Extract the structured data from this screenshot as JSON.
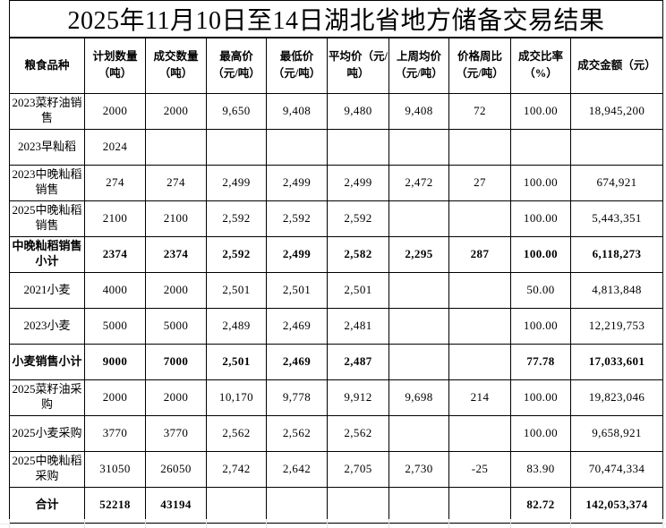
{
  "title": "2025年11月10日至14日湖北省地方储备交易结果",
  "colors": {
    "border": "#000000",
    "background": "#ffffff",
    "text": "#000000"
  },
  "table": {
    "columns": [
      "粮食品种",
      "计划数量（吨）",
      "成交数量（吨）",
      "最高价（元/吨）",
      "最低价（元/吨）",
      "平均价（元/吨）",
      "上周均价（元/吨）",
      "价格周比（元/吨）",
      "成交比率（%）",
      "成交金额（元）"
    ],
    "rows": [
      {
        "label": "2023菜籽油销售",
        "bold": false,
        "cells": [
          "2000",
          "2000",
          "9,650",
          "9,408",
          "9,480",
          "9,408",
          "72",
          "100.00",
          "18,945,200"
        ]
      },
      {
        "label": "2023早籼稻",
        "bold": false,
        "cells": [
          "2024",
          "",
          "",
          "",
          "",
          "",
          "",
          "",
          ""
        ]
      },
      {
        "label": "2023中晚籼稻销售",
        "bold": false,
        "cells": [
          "274",
          "274",
          "2,499",
          "2,499",
          "2,499",
          "2,472",
          "27",
          "100.00",
          "674,921"
        ]
      },
      {
        "label": "2025中晚籼稻销售",
        "bold": false,
        "cells": [
          "2100",
          "2100",
          "2,592",
          "2,592",
          "2,592",
          "",
          "",
          "100.00",
          "5,443,351"
        ]
      },
      {
        "label": "中晚籼稻销售小计",
        "bold": true,
        "cells": [
          "2374",
          "2374",
          "2,592",
          "2,499",
          "2,582",
          "2,295",
          "287",
          "100.00",
          "6,118,273"
        ]
      },
      {
        "label": "2021小麦",
        "bold": false,
        "cells": [
          "4000",
          "2000",
          "2,501",
          "2,501",
          "2,501",
          "",
          "",
          "50.00",
          "4,813,848"
        ]
      },
      {
        "label": "2023小麦",
        "bold": false,
        "cells": [
          "5000",
          "5000",
          "2,489",
          "2,469",
          "2,481",
          "",
          "",
          "100.00",
          "12,219,753"
        ]
      },
      {
        "label": "小麦销售小计",
        "bold": true,
        "cells": [
          "9000",
          "7000",
          "2,501",
          "2,469",
          "2,487",
          "",
          "",
          "77.78",
          "17,033,601"
        ]
      },
      {
        "label": "2025菜籽油采购",
        "bold": false,
        "cells": [
          "2000",
          "2000",
          "10,170",
          "9,778",
          "9,912",
          "9,698",
          "214",
          "100.00",
          "19,823,046"
        ]
      },
      {
        "label": "2025小麦采购",
        "bold": false,
        "cells": [
          "3770",
          "3770",
          "2,562",
          "2,562",
          "2,562",
          "",
          "",
          "100.00",
          "9,658,921"
        ]
      },
      {
        "label": "2025中晚籼稻采购",
        "bold": false,
        "cells": [
          "31050",
          "26050",
          "2,742",
          "2,642",
          "2,705",
          "2,730",
          "-25",
          "83.90",
          "70,474,334"
        ]
      },
      {
        "label": "合计",
        "bold": true,
        "cells": [
          "52218",
          "43194",
          "",
          "",
          "",
          "",
          "",
          "82.72",
          "142,053,374"
        ]
      }
    ]
  }
}
